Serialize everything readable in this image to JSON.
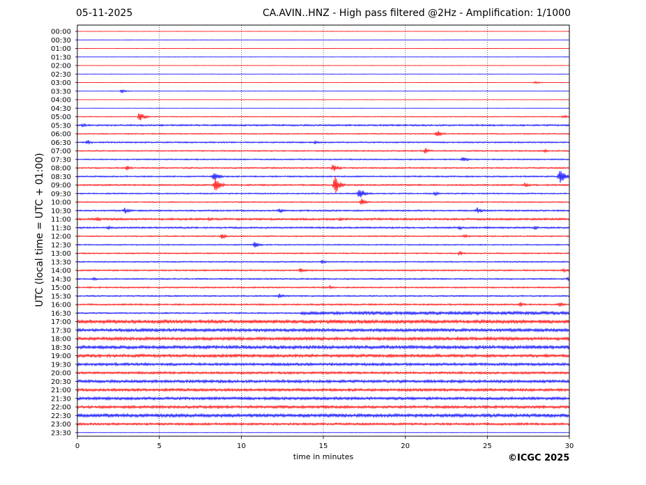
{
  "header": {
    "date": "05-11-2025",
    "title": "CA.AVIN..HNZ - High pass filtered @2Hz - Amplification: 1/1000"
  },
  "footer": {
    "copyright": "©ICGC 2025"
  },
  "chart_data": {
    "type": "line",
    "title": "CA.AVIN..HNZ - High pass filtered @2Hz - Amplification: 1/1000",
    "xlabel": "time in minutes",
    "ylabel": "UTC (local time = UTC + 01:00)",
    "xlim": [
      0,
      30
    ],
    "xticks": [
      0,
      5,
      10,
      15,
      20,
      25,
      30
    ],
    "grid": "vertical dotted lines at each x tick",
    "colors": {
      "even_rows": "#ff0000",
      "odd_rows": "#0000ff"
    },
    "rows": [
      {
        "label": "00:00",
        "noise": 0.15,
        "events": []
      },
      {
        "label": "00:30",
        "noise": 0.15,
        "events": []
      },
      {
        "label": "01:00",
        "noise": 0.15,
        "events": []
      },
      {
        "label": "01:30",
        "noise": 0.2,
        "events": []
      },
      {
        "label": "02:00",
        "noise": 0.15,
        "events": []
      },
      {
        "label": "02:30",
        "noise": 0.15,
        "events": []
      },
      {
        "label": "03:00",
        "noise": 0.15,
        "events": [
          {
            "t": 27.9,
            "amp": 2
          }
        ]
      },
      {
        "label": "03:30",
        "noise": 0.2,
        "events": [
          {
            "t": 2.7,
            "amp": 3
          }
        ]
      },
      {
        "label": "04:00",
        "noise": 0.2,
        "events": []
      },
      {
        "label": "04:30",
        "noise": 0.25,
        "events": []
      },
      {
        "label": "05:00",
        "noise": 0.6,
        "events": [
          {
            "t": 3.8,
            "amp": 8
          },
          {
            "t": 29.6,
            "amp": 3
          }
        ]
      },
      {
        "label": "05:30",
        "noise": 1.2,
        "events": [
          {
            "t": 0.3,
            "amp": 3
          }
        ]
      },
      {
        "label": "06:00",
        "noise": 0.8,
        "events": [
          {
            "t": 21.9,
            "amp": 6
          }
        ]
      },
      {
        "label": "06:30",
        "noise": 1.0,
        "events": [
          {
            "t": 0.6,
            "amp": 4
          },
          {
            "t": 14.5,
            "amp": 3
          }
        ]
      },
      {
        "label": "07:00",
        "noise": 0.9,
        "events": [
          {
            "t": 21.2,
            "amp": 5
          },
          {
            "t": 28.5,
            "amp": 3
          }
        ]
      },
      {
        "label": "07:30",
        "noise": 0.9,
        "events": [
          {
            "t": 23.5,
            "amp": 5
          }
        ]
      },
      {
        "label": "08:00",
        "noise": 1.0,
        "events": [
          {
            "t": 3.0,
            "amp": 4
          },
          {
            "t": 15.6,
            "amp": 7
          }
        ]
      },
      {
        "label": "08:30",
        "noise": 1.0,
        "events": [
          {
            "t": 8.3,
            "amp": 8
          },
          {
            "t": 29.4,
            "amp": 12
          }
        ]
      },
      {
        "label": "09:00",
        "noise": 1.1,
        "events": [
          {
            "t": 8.4,
            "amp": 12
          },
          {
            "t": 15.7,
            "amp": 14
          },
          {
            "t": 27.3,
            "amp": 4
          }
        ]
      },
      {
        "label": "09:30",
        "noise": 0.9,
        "events": [
          {
            "t": 17.2,
            "amp": 10
          },
          {
            "t": 21.8,
            "amp": 3
          }
        ]
      },
      {
        "label": "10:00",
        "noise": 0.8,
        "events": [
          {
            "t": 17.3,
            "amp": 6
          }
        ]
      },
      {
        "label": "10:30",
        "noise": 1.1,
        "events": [
          {
            "t": 2.9,
            "amp": 5
          },
          {
            "t": 12.3,
            "amp": 5
          },
          {
            "t": 24.4,
            "amp": 5
          }
        ]
      },
      {
        "label": "11:00",
        "noise": 1.5,
        "events": [
          {
            "t": 1.2,
            "amp": 4
          },
          {
            "t": 8.0,
            "amp": 3
          },
          {
            "t": 16.0,
            "amp": 3
          }
        ]
      },
      {
        "label": "11:30",
        "noise": 1.2,
        "events": [
          {
            "t": 1.9,
            "amp": 3
          },
          {
            "t": 23.3,
            "amp": 3
          },
          {
            "t": 27.9,
            "amp": 3
          }
        ]
      },
      {
        "label": "12:00",
        "noise": 0.9,
        "events": [
          {
            "t": 8.8,
            "amp": 4
          },
          {
            "t": 23.6,
            "amp": 3
          }
        ]
      },
      {
        "label": "12:30",
        "noise": 0.8,
        "events": [
          {
            "t": 10.8,
            "amp": 5
          }
        ]
      },
      {
        "label": "13:00",
        "noise": 0.9,
        "events": [
          {
            "t": 23.3,
            "amp": 4
          }
        ]
      },
      {
        "label": "13:30",
        "noise": 0.9,
        "events": [
          {
            "t": 14.9,
            "amp": 3
          }
        ]
      },
      {
        "label": "14:00",
        "noise": 1.0,
        "events": [
          {
            "t": 13.6,
            "amp": 4
          },
          {
            "t": 29.6,
            "amp": 4
          }
        ]
      },
      {
        "label": "14:30",
        "noise": 1.0,
        "events": [
          {
            "t": 1.0,
            "amp": 3
          },
          {
            "t": 29.9,
            "amp": 3
          }
        ]
      },
      {
        "label": "15:00",
        "noise": 1.0,
        "events": [
          {
            "t": 15.4,
            "amp": 3
          }
        ]
      },
      {
        "label": "15:30",
        "noise": 1.0,
        "events": [
          {
            "t": 12.3,
            "amp": 4
          }
        ]
      },
      {
        "label": "16:00",
        "noise": 1.1,
        "events": [
          {
            "t": 27.0,
            "amp": 4
          },
          {
            "t": 29.4,
            "amp": 4
          }
        ]
      },
      {
        "label": "16:30",
        "noise": 1.0,
        "rise": 13.6,
        "after": 2.3,
        "events": []
      },
      {
        "label": "17:00",
        "noise": 2.4,
        "events": []
      },
      {
        "label": "17:30",
        "noise": 2.2,
        "events": []
      },
      {
        "label": "18:00",
        "noise": 2.2,
        "events": [
          {
            "t": 23.2,
            "amp": 4
          }
        ]
      },
      {
        "label": "18:30",
        "noise": 2.3,
        "events": []
      },
      {
        "label": "19:00",
        "noise": 2.1,
        "events": []
      },
      {
        "label": "19:30",
        "noise": 1.9,
        "events": []
      },
      {
        "label": "20:00",
        "noise": 1.6,
        "events": []
      },
      {
        "label": "20:30",
        "noise": 2.0,
        "events": []
      },
      {
        "label": "21:00",
        "noise": 1.9,
        "events": []
      },
      {
        "label": "21:30",
        "noise": 2.0,
        "events": []
      },
      {
        "label": "22:00",
        "noise": 1.9,
        "events": []
      },
      {
        "label": "22:30",
        "noise": 2.4,
        "events": []
      },
      {
        "label": "23:00",
        "noise": 1.6,
        "events": []
      },
      {
        "label": "23:30",
        "noise": 0.15,
        "events": []
      }
    ]
  }
}
